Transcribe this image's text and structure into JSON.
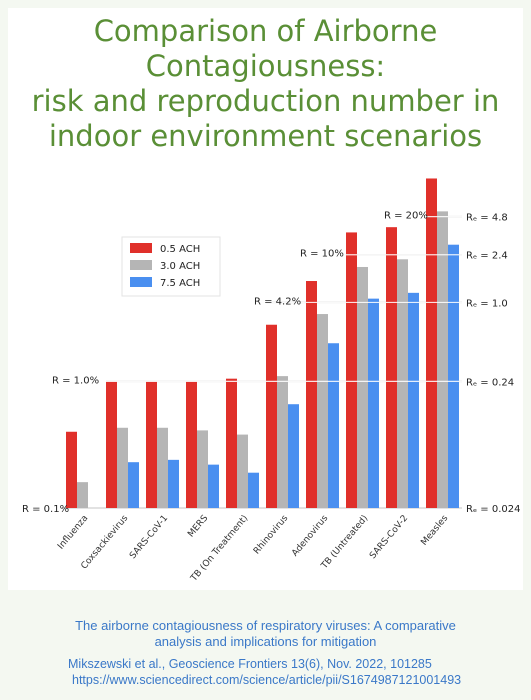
{
  "title_lines": [
    "Comparison of Airborne",
    "Contagiousness:",
    "risk and reproduction number in",
    "indoor environment scenarios"
  ],
  "caption_lines": [
    "The airborne contagiousness of respiratory viruses: A comparative",
    "analysis and implications for mitigation"
  ],
  "citation_lines": [
    "Mikszewski et al., Geoscience Frontiers 13(6), Nov. 2022, 101285",
    "https://www.sciencedirect.com/science/article/pii/S1674987121001493"
  ],
  "colors": {
    "title": "#5a8f36",
    "caption": "#3a78c8",
    "series": [
      "#e0302a",
      "#b5b5b5",
      "#4a8ff0"
    ]
  },
  "chart_data": {
    "type": "bar",
    "y_scale": "log",
    "categories": [
      "Influenza",
      "Coxsackievirus",
      "SARS-CoV-1",
      "MERS",
      "TB (On Treatment)",
      "Rhinovirus",
      "Adenovirus",
      "TB (Untreated)",
      "SARS-CoV-2",
      "Measles"
    ],
    "series": [
      {
        "name": "0.5 ACH",
        "values": [
          0.4,
          1.0,
          1.0,
          1.0,
          1.05,
          2.8,
          6.2,
          15.0,
          16.5,
          40.0
        ]
      },
      {
        "name": "3.0 ACH",
        "values": [
          0.16,
          0.43,
          0.43,
          0.41,
          0.38,
          1.1,
          3.4,
          8.0,
          9.2,
          22.0
        ]
      },
      {
        "name": "7.5 ACH",
        "values": [
          null,
          0.23,
          0.24,
          0.22,
          0.19,
          0.66,
          2.0,
          4.5,
          5.0,
          12.0
        ]
      }
    ],
    "ylim": [
      0.1,
      45
    ],
    "risk_labels": [
      {
        "text": "R = 0.1%",
        "y": 0.1
      },
      {
        "text": "R = 1.0%",
        "y": 1.0
      },
      {
        "text": "R = 4.2%",
        "y": 4.2
      },
      {
        "text": "R = 10%",
        "y": 10
      },
      {
        "text": "R = 20%",
        "y": 20
      }
    ],
    "re_labels": [
      {
        "text": "Rₑ = 0.024",
        "y": 0.1
      },
      {
        "text": "Rₑ = 0.24",
        "y": 1.0
      },
      {
        "text": "Rₑ = 1.0",
        "y": 4.2
      },
      {
        "text": "Rₑ = 2.4",
        "y": 10
      },
      {
        "text": "Rₑ = 4.8",
        "y": 20
      }
    ]
  }
}
